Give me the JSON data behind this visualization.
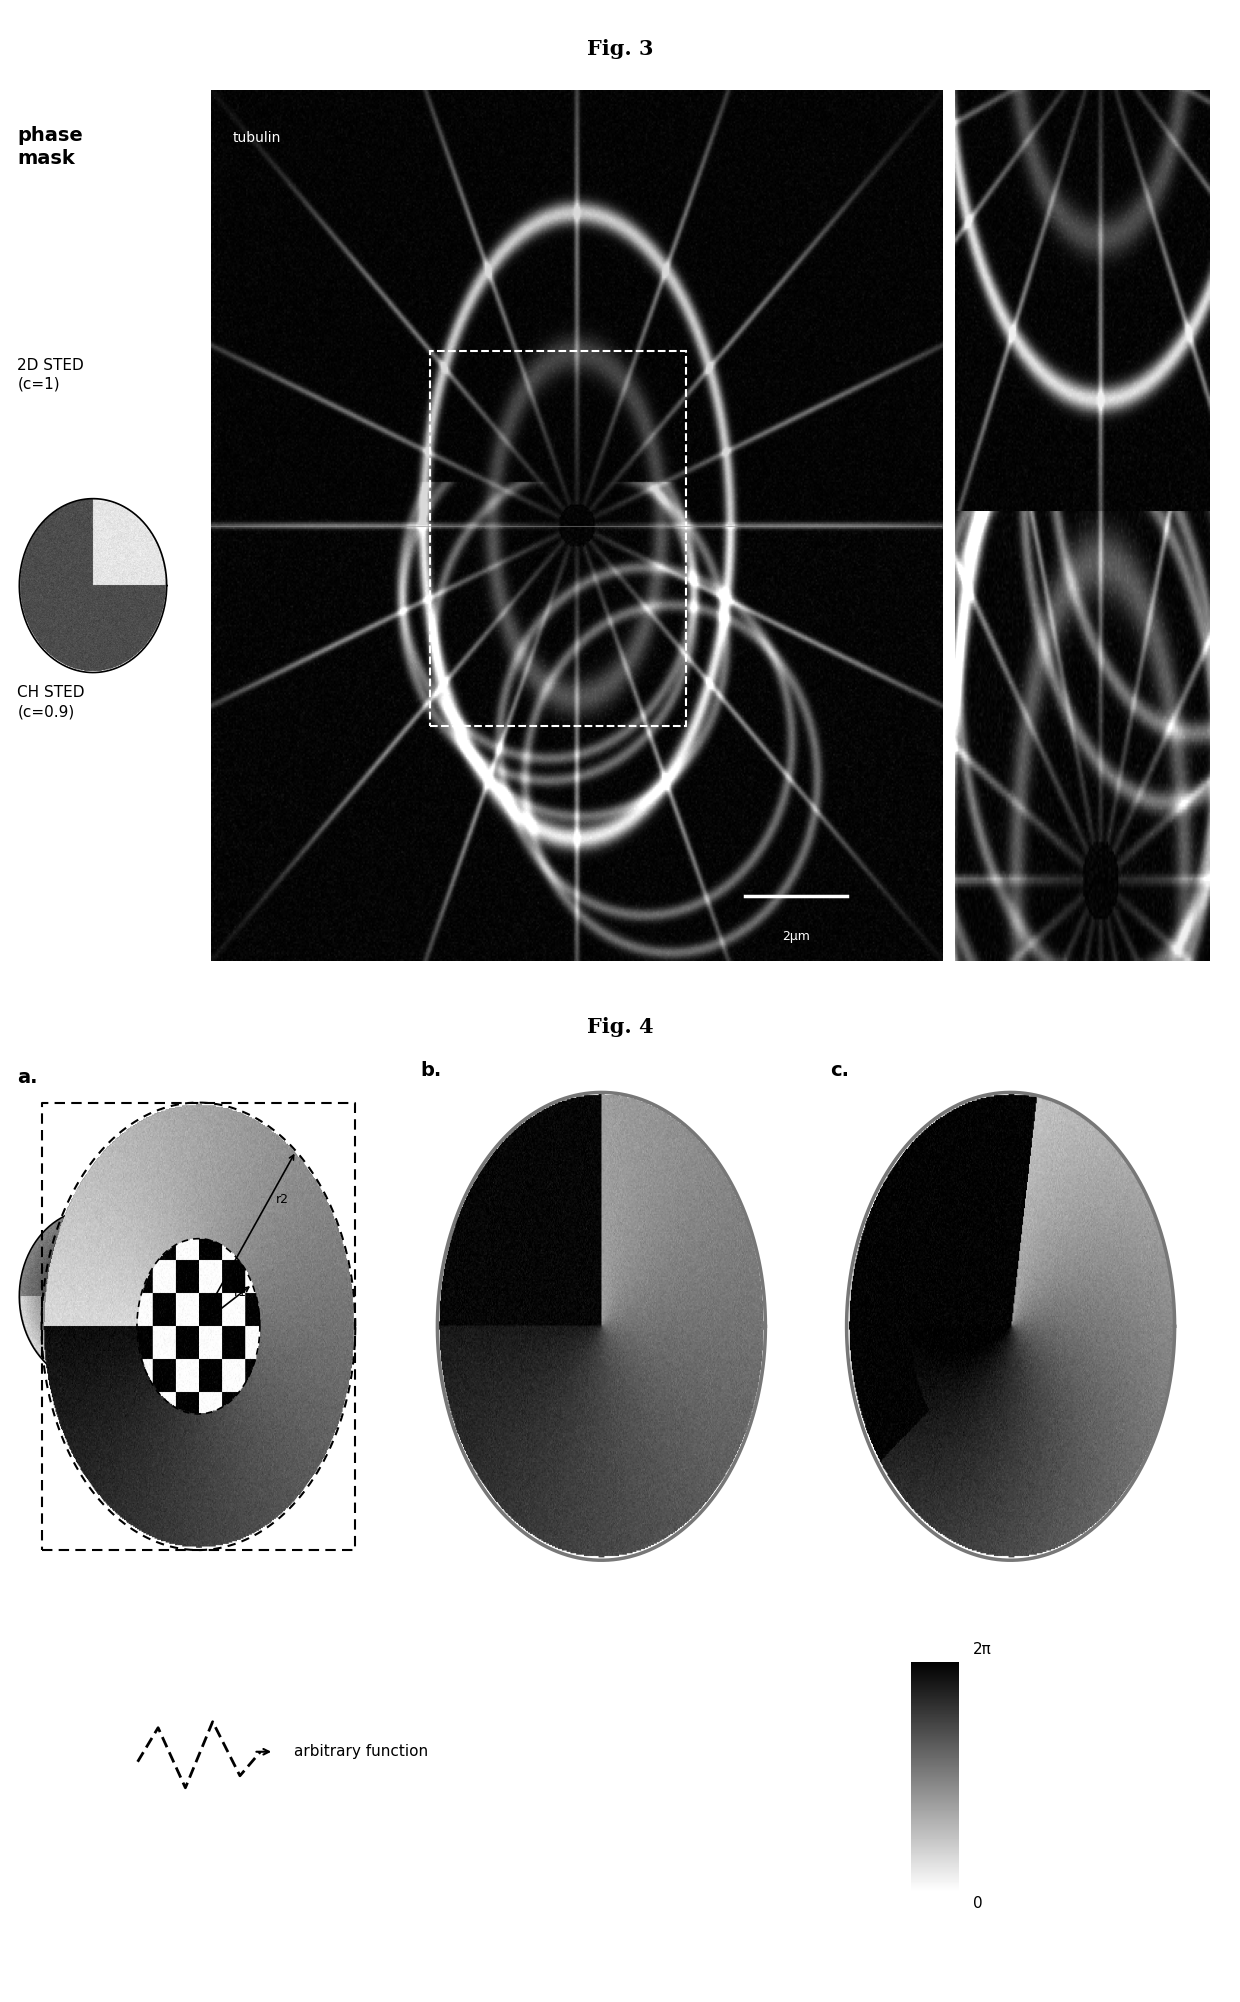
{
  "fig3_title": "Fig. 3",
  "fig4_title": "Fig. 4",
  "label_phase_mask": "phase\nmask",
  "label_2d_sted": "2D STED\n(c=1)",
  "label_ch_sted": "CH STED\n(c=0.9)",
  "label_tubulin": "tubulin",
  "label_scalebar": "2μm",
  "label_a": "a.",
  "label_b": "b.",
  "label_c": "c.",
  "label_arbitrary": "arbitrary function",
  "label_2pi": "2π",
  "label_0": "0",
  "white": "#ffffff",
  "black": "#000000"
}
